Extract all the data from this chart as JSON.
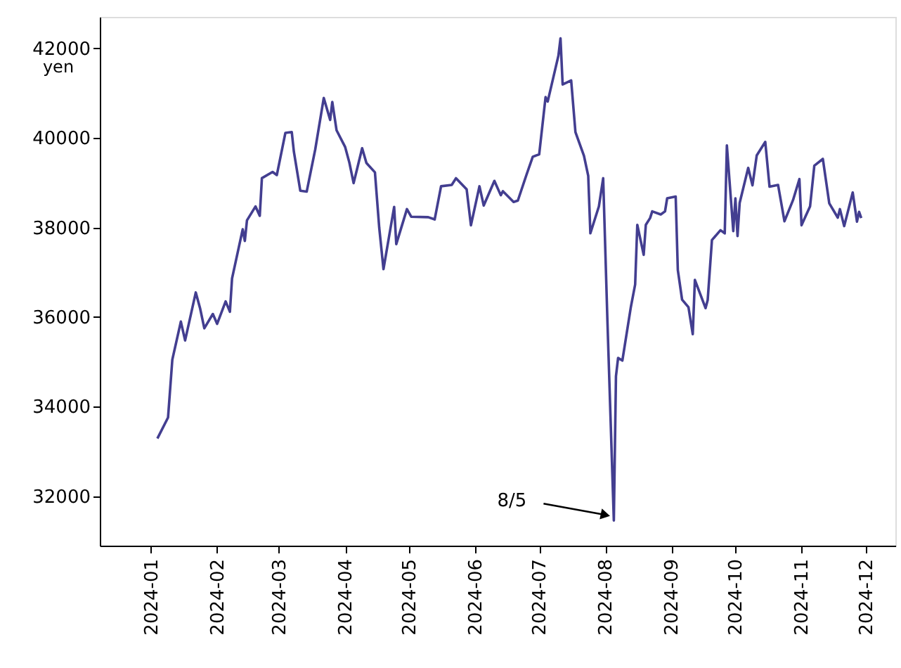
{
  "chart_data": {
    "type": "line",
    "ylabel": "yen",
    "xlim": [
      "2023-12-08",
      "2024-12-15"
    ],
    "ylim": [
      30900,
      42700
    ],
    "xticks": [
      "2024-01",
      "2024-02",
      "2024-03",
      "2024-04",
      "2024-05",
      "2024-06",
      "2024-07",
      "2024-08",
      "2024-09",
      "2024-10",
      "2024-11",
      "2024-12"
    ],
    "yticks": [
      32000,
      34000,
      36000,
      38000,
      40000,
      42000
    ],
    "grid": false,
    "marker": "none",
    "line_style": "solid",
    "annotations": [
      {
        "text": "8/5",
        "x": "2024-08-05",
        "y": 31460
      }
    ],
    "series": [
      {
        "color": "#433e90",
        "x": [
          "2024-01-04",
          "2024-01-09",
          "2024-01-11",
          "2024-01-15",
          "2024-01-17",
          "2024-01-22",
          "2024-01-24",
          "2024-01-26",
          "2024-01-30",
          "2024-02-01",
          "2024-02-05",
          "2024-02-07",
          "2024-02-08",
          "2024-02-13",
          "2024-02-14",
          "2024-02-15",
          "2024-02-19",
          "2024-02-21",
          "2024-02-22",
          "2024-02-27",
          "2024-02-29",
          "2024-03-04",
          "2024-03-07",
          "2024-03-08",
          "2024-03-11",
          "2024-03-14",
          "2024-03-18",
          "2024-03-22",
          "2024-03-25",
          "2024-03-26",
          "2024-03-28",
          "2024-04-01",
          "2024-04-03",
          "2024-04-05",
          "2024-04-09",
          "2024-04-11",
          "2024-04-15",
          "2024-04-17",
          "2024-04-19",
          "2024-04-24",
          "2024-04-25",
          "2024-04-30",
          "2024-05-02",
          "2024-05-10",
          "2024-05-13",
          "2024-05-16",
          "2024-05-21",
          "2024-05-23",
          "2024-05-28",
          "2024-05-30",
          "2024-06-03",
          "2024-06-05",
          "2024-06-10",
          "2024-06-13",
          "2024-06-14",
          "2024-06-19",
          "2024-06-21",
          "2024-06-25",
          "2024-06-28",
          "2024-07-01",
          "2024-07-04",
          "2024-07-05",
          "2024-07-10",
          "2024-07-11",
          "2024-07-12",
          "2024-07-16",
          "2024-07-18",
          "2024-07-22",
          "2024-07-24",
          "2024-07-25",
          "2024-07-29",
          "2024-07-31",
          "2024-08-02",
          "2024-08-05",
          "2024-08-06",
          "2024-08-07",
          "2024-08-09",
          "2024-08-13",
          "2024-08-15",
          "2024-08-16",
          "2024-08-19",
          "2024-08-20",
          "2024-08-22",
          "2024-08-23",
          "2024-08-27",
          "2024-08-29",
          "2024-08-30",
          "2024-09-03",
          "2024-09-04",
          "2024-09-06",
          "2024-09-09",
          "2024-09-11",
          "2024-09-12",
          "2024-09-17",
          "2024-09-18",
          "2024-09-20",
          "2024-09-24",
          "2024-09-26",
          "2024-09-27",
          "2024-09-30",
          "2024-10-01",
          "2024-10-02",
          "2024-10-03",
          "2024-10-07",
          "2024-10-09",
          "2024-10-11",
          "2024-10-15",
          "2024-10-17",
          "2024-10-21",
          "2024-10-24",
          "2024-10-28",
          "2024-10-31",
          "2024-11-01",
          "2024-11-05",
          "2024-11-07",
          "2024-11-11",
          "2024-11-14",
          "2024-11-18",
          "2024-11-19",
          "2024-11-21",
          "2024-11-25",
          "2024-11-27",
          "2024-11-28",
          "2024-11-29"
        ],
        "values": [
          33290,
          33760,
          35050,
          35900,
          35480,
          36550,
          36200,
          35750,
          36070,
          35850,
          36350,
          36120,
          36860,
          37960,
          37700,
          38160,
          38470,
          38260,
          39100,
          39240,
          39170,
          40110,
          40130,
          39690,
          38820,
          38800,
          39740,
          40890,
          40400,
          40800,
          40170,
          39800,
          39450,
          38990,
          39770,
          39440,
          39230,
          38000,
          37070,
          38460,
          37630,
          38410,
          38240,
          38230,
          38180,
          38920,
          38950,
          39100,
          38850,
          38050,
          38920,
          38490,
          39040,
          38720,
          38810,
          38570,
          38600,
          39170,
          39580,
          39630,
          40910,
          40810,
          41830,
          42220,
          41190,
          41280,
          40130,
          39600,
          39150,
          37870,
          38470,
          39100,
          35910,
          31460,
          34680,
          35090,
          35030,
          36230,
          36730,
          38060,
          37390,
          38060,
          38210,
          38360,
          38290,
          38360,
          38650,
          38690,
          37050,
          36390,
          36220,
          35620,
          36830,
          36200,
          36380,
          37720,
          37940,
          37870,
          39830,
          37920,
          38650,
          37810,
          38550,
          39330,
          38940,
          39610,
          39910,
          38910,
          38950,
          38140,
          38610,
          39080,
          38050,
          38470,
          39380,
          39530,
          38540,
          38220,
          38410,
          38030,
          38780,
          38130,
          38350,
          38210
        ]
      }
    ]
  }
}
